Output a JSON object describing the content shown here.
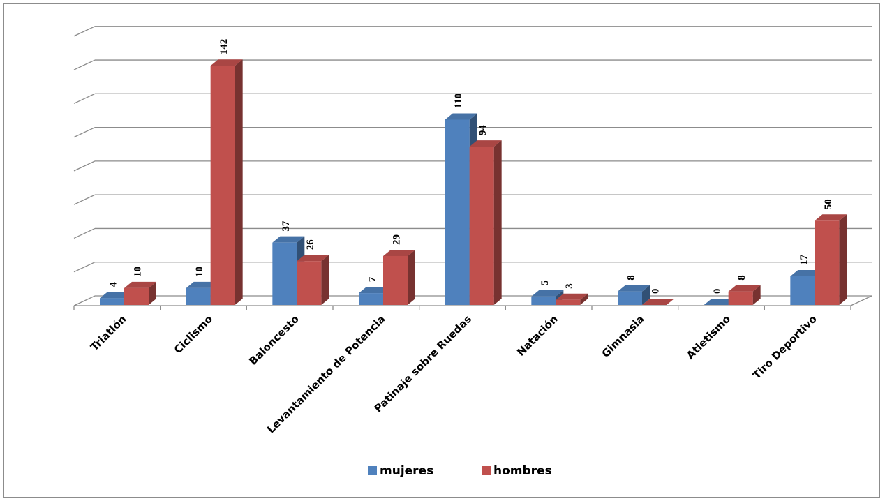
{
  "chart_data": {
    "type": "bar",
    "style": "3d-clustered-column",
    "categories": [
      "Triatlón",
      "Ciclismo",
      "Baloncesto",
      "Levantamiento de Potencia",
      "Patinaje sobre Ruedas",
      "Natación",
      "Gimnasia",
      "Atletismo",
      "Tiro Deportivo"
    ],
    "series": [
      {
        "name": "mujeres",
        "values": [
          4,
          10,
          37,
          7,
          110,
          5,
          8,
          0,
          17
        ],
        "color": "#4f81bd"
      },
      {
        "name": "hombres",
        "values": [
          10,
          142,
          26,
          29,
          94,
          3,
          0,
          8,
          50
        ],
        "color": "#c0504d"
      }
    ],
    "ylim": [
      0,
      160
    ],
    "grid": true,
    "legend_position": "bottom",
    "data_labels": true
  }
}
